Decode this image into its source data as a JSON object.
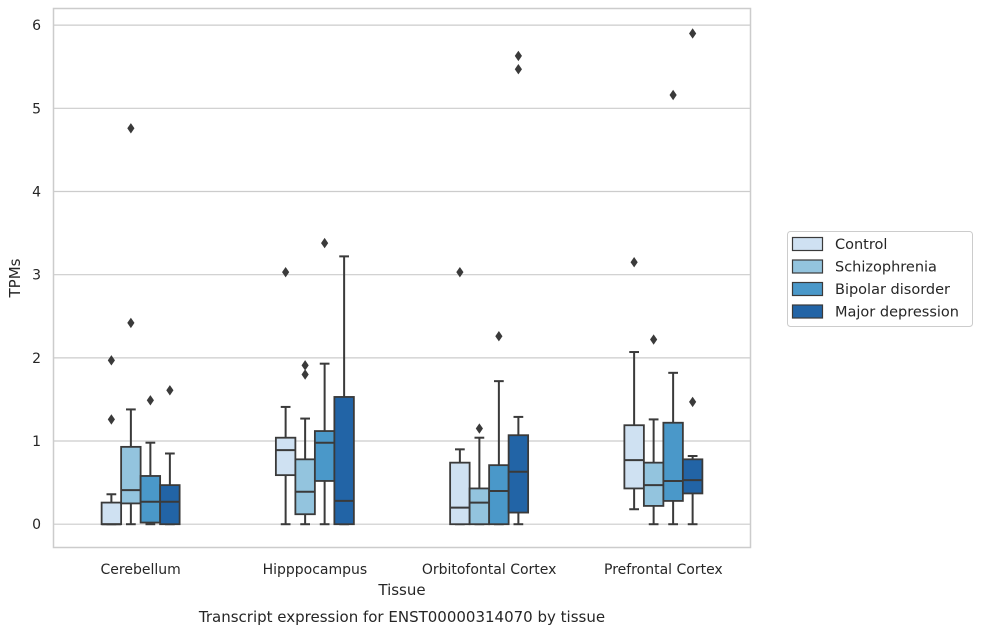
{
  "chart_data": {
    "type": "box",
    "title": "",
    "caption": "Transcript expression for ENST00000314070 by tissue",
    "xlabel": "Tissue",
    "ylabel": "TPMs",
    "ylim": [
      -0.28,
      6.2
    ],
    "yticks": [
      0,
      1,
      2,
      3,
      4,
      5,
      6
    ],
    "grid": "horizontal",
    "legend_position": "right",
    "categories": [
      "Cerebellum",
      "Hipppocampus",
      "Orbitofontal Cortex",
      "Prefrontal Cortex"
    ],
    "series": [
      {
        "name": "Control",
        "color": "#cfe1f2",
        "boxes": [
          {
            "whislo": 0,
            "q1": 0,
            "med": 0,
            "q3": 0.26,
            "whishi": 0.36,
            "fliers": [
              1.26,
              1.97
            ]
          },
          {
            "whislo": 0,
            "q1": 0.59,
            "med": 0.89,
            "q3": 1.04,
            "whishi": 1.41,
            "fliers": [
              3.03
            ]
          },
          {
            "whislo": 0,
            "q1": 0,
            "med": 0.2,
            "q3": 0.74,
            "whishi": 0.9,
            "fliers": [
              3.03
            ]
          },
          {
            "whislo": 0.18,
            "q1": 0.43,
            "med": 0.77,
            "q3": 1.19,
            "whishi": 2.07,
            "fliers": [
              3.15
            ]
          }
        ]
      },
      {
        "name": "Schizophrenia",
        "color": "#93c4de",
        "boxes": [
          {
            "whislo": 0,
            "q1": 0.25,
            "med": 0.41,
            "q3": 0.93,
            "whishi": 1.38,
            "fliers": [
              2.42,
              4.76
            ]
          },
          {
            "whislo": 0,
            "q1": 0.12,
            "med": 0.39,
            "q3": 0.78,
            "whishi": 1.27,
            "fliers": [
              1.8,
              1.91
            ]
          },
          {
            "whislo": 0,
            "q1": 0,
            "med": 0.26,
            "q3": 0.43,
            "whishi": 1.04,
            "fliers": [
              1.15
            ]
          },
          {
            "whislo": 0,
            "q1": 0.22,
            "med": 0.47,
            "q3": 0.74,
            "whishi": 1.26,
            "fliers": [
              2.22
            ]
          }
        ]
      },
      {
        "name": "Bipolar disorder",
        "color": "#4a98c9",
        "boxes": [
          {
            "whislo": 0,
            "q1": 0.02,
            "med": 0.27,
            "q3": 0.58,
            "whishi": 0.98,
            "fliers": [
              1.49
            ]
          },
          {
            "whislo": 0,
            "q1": 0.52,
            "med": 0.98,
            "q3": 1.12,
            "whishi": 1.93,
            "fliers": [
              3.38
            ]
          },
          {
            "whislo": 0,
            "q1": 0,
            "med": 0.4,
            "q3": 0.71,
            "whishi": 1.72,
            "fliers": [
              2.26
            ]
          },
          {
            "whislo": 0,
            "q1": 0.28,
            "med": 0.52,
            "q3": 1.22,
            "whishi": 1.82,
            "fliers": [
              5.16
            ]
          }
        ]
      },
      {
        "name": "Major depression",
        "color": "#2264a6",
        "boxes": [
          {
            "whislo": 0,
            "q1": 0,
            "med": 0.27,
            "q3": 0.47,
            "whishi": 0.85,
            "fliers": [
              1.61
            ]
          },
          {
            "whislo": 0,
            "q1": 0,
            "med": 0.28,
            "q3": 1.53,
            "whishi": 3.22,
            "fliers": []
          },
          {
            "whislo": 0,
            "q1": 0.14,
            "med": 0.63,
            "q3": 1.07,
            "whishi": 1.29,
            "fliers": [
              5.47,
              5.63
            ]
          },
          {
            "whislo": 0,
            "q1": 0.37,
            "med": 0.53,
            "q3": 0.78,
            "whishi": 0.82,
            "fliers": [
              1.47,
              5.9
            ]
          }
        ]
      }
    ]
  }
}
